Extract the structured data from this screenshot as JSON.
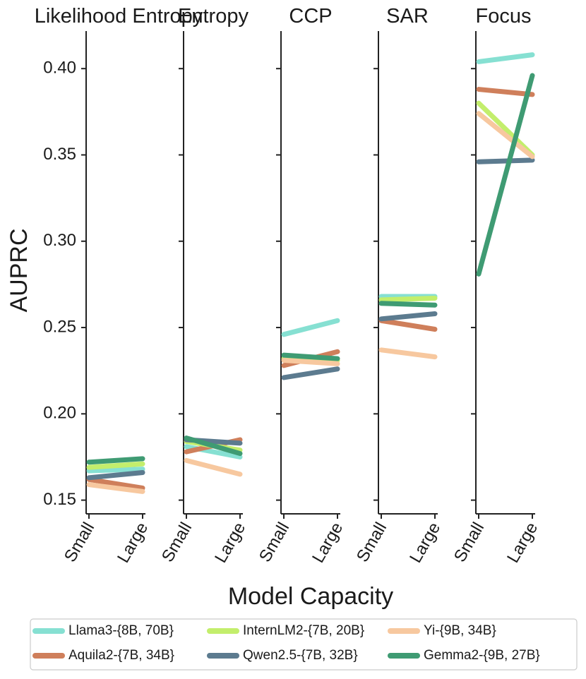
{
  "chart_data": {
    "type": "line",
    "panels": [
      {
        "title": "Likelihood Entropy",
        "series": [
          {
            "name": "Llama3-{8B, 70B}",
            "values": [
              0.167,
              0.168
            ]
          },
          {
            "name": "Aquila2-{7B, 34B}",
            "values": [
              0.162,
              0.157
            ]
          },
          {
            "name": "InternLM2-{7B, 20B}",
            "values": [
              0.169,
              0.171
            ]
          },
          {
            "name": "Qwen2.5-{7B, 32B}",
            "values": [
              0.163,
              0.166
            ]
          },
          {
            "name": "Yi-{9B, 34B}",
            "values": [
              0.159,
              0.155
            ]
          },
          {
            "name": "Gemma2-{9B, 27B}",
            "values": [
              0.172,
              0.174
            ]
          }
        ]
      },
      {
        "title": "",
        "series": [
          {
            "name": "Llama3-{8B, 70B}",
            "values": [
              0.181,
              0.175
            ]
          },
          {
            "name": "Aquila2-{7B, 34B}",
            "values": [
              0.178,
              0.185
            ]
          },
          {
            "name": "InternLM2-{7B, 20B}",
            "values": [
              0.184,
              0.179
            ]
          },
          {
            "name": "Qwen2.5-{7B, 32B}",
            "values": [
              0.185,
              0.183
            ]
          },
          {
            "name": "Yi-{9B, 34B}",
            "values": [
              0.173,
              0.165
            ]
          },
          {
            "name": "Gemma2-{9B, 27B}",
            "values": [
              0.186,
              0.177
            ]
          }
        ]
      },
      {
        "title": "CCP",
        "series": [
          {
            "name": "Llama3-{8B, 70B}",
            "values": [
              0.246,
              0.254
            ]
          },
          {
            "name": "Aquila2-{7B, 34B}",
            "values": [
              0.228,
              0.236
            ]
          },
          {
            "name": "InternLM2-{7B, 20B}",
            "values": [
              0.232,
              0.231
            ]
          },
          {
            "name": "Qwen2.5-{7B, 32B}",
            "values": [
              0.221,
              0.226
            ]
          },
          {
            "name": "Yi-{9B, 34B}",
            "values": [
              0.231,
              0.229
            ]
          },
          {
            "name": "Gemma2-{9B, 27B}",
            "values": [
              0.234,
              0.232
            ]
          }
        ]
      },
      {
        "title": "SAR",
        "series": [
          {
            "name": "Llama3-{8B, 70B}",
            "values": [
              0.268,
              0.268
            ]
          },
          {
            "name": "Aquila2-{7B, 34B}",
            "values": [
              0.254,
              0.249
            ]
          },
          {
            "name": "InternLM2-{7B, 20B}",
            "values": [
              0.266,
              0.267
            ]
          },
          {
            "name": "Qwen2.5-{7B, 32B}",
            "values": [
              0.255,
              0.258
            ]
          },
          {
            "name": "Yi-{9B, 34B}",
            "values": [
              0.237,
              0.233
            ]
          },
          {
            "name": "Gemma2-{9B, 27B}",
            "values": [
              0.264,
              0.263
            ]
          }
        ]
      },
      {
        "title": "Focus",
        "series": [
          {
            "name": "Llama3-{8B, 70B}",
            "values": [
              0.404,
              0.408
            ]
          },
          {
            "name": "Aquila2-{7B, 34B}",
            "values": [
              0.388,
              0.385
            ]
          },
          {
            "name": "InternLM2-{7B, 20B}",
            "values": [
              0.38,
              0.35
            ]
          },
          {
            "name": "Qwen2.5-{7B, 32B}",
            "values": [
              0.346,
              0.347
            ]
          },
          {
            "name": "Yi-{9B, 34B}",
            "values": [
              0.374,
              0.349
            ]
          },
          {
            "name": "Gemma2-{9B, 27B}",
            "values": [
              0.281,
              0.396
            ]
          }
        ]
      }
    ],
    "panel_title_extra": "Entropy",
    "categories": [
      "Small",
      "Large"
    ],
    "xlabel": "Model Capacity",
    "ylabel": "AUPRC",
    "ylim": [
      0.143,
      0.422
    ],
    "yticks": [
      0.15,
      0.2,
      0.25,
      0.3,
      0.35,
      0.4
    ],
    "ytick_labels": [
      "0.15",
      "0.20",
      "0.25",
      "0.30",
      "0.35",
      "0.40"
    ],
    "legend": {
      "placement": "bottom-center",
      "entries": [
        {
          "name": "Llama3-{8B, 70B}",
          "color": "#86e0d2"
        },
        {
          "name": "InternLM2-{7B, 20B}",
          "color": "#c3ee6c"
        },
        {
          "name": "Yi-{9B, 34B}",
          "color": "#f7c89f"
        },
        {
          "name": "Aquila2-{7B, 34B}",
          "color": "#cf7f5b"
        },
        {
          "name": "Qwen2.5-{7B, 32B}",
          "color": "#5c7b8f"
        },
        {
          "name": "Gemma2-{9B, 27B}",
          "color": "#3f9b73"
        }
      ]
    },
    "colors": {
      "Llama3-{8B, 70B}": "#86e0d2",
      "Aquila2-{7B, 34B}": "#cf7f5b",
      "InternLM2-{7B, 20B}": "#c3ee6c",
      "Qwen2.5-{7B, 32B}": "#5c7b8f",
      "Yi-{9B, 34B}": "#f7c89f",
      "Gemma2-{9B, 27B}": "#3f9b73"
    }
  }
}
